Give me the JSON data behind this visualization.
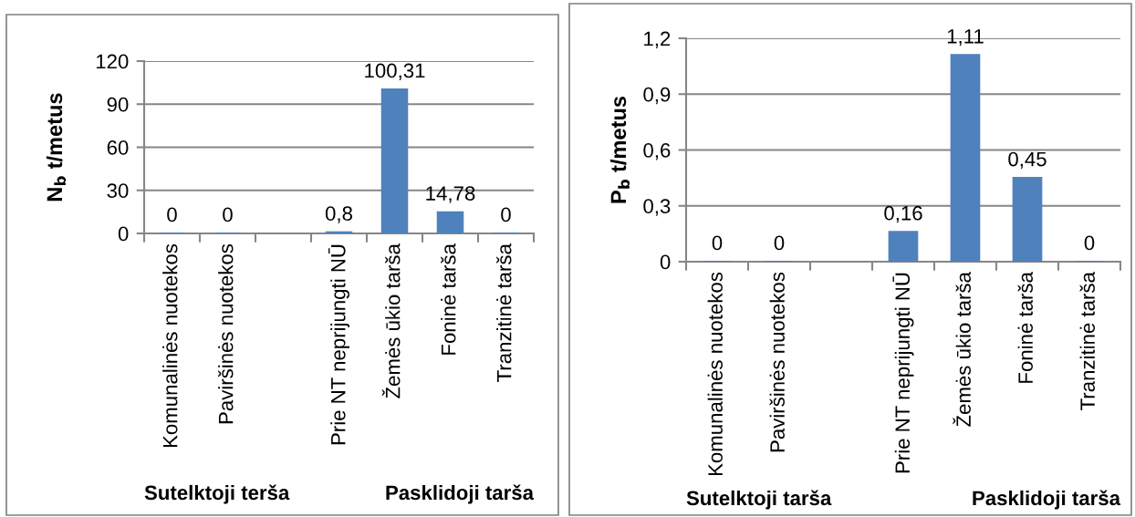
{
  "chart_data": [
    {
      "type": "bar",
      "ylabel": "N$_{b}$ t/metus",
      "categories": [
        "Komunalinės nuotekos",
        "Paviršinės nuotekos",
        null,
        "Prie NT neprijungti NŪ",
        "Žemės ūkio tarša",
        "Foninė tarša",
        "Tranzitinė tarša"
      ],
      "values": [
        0,
        0,
        null,
        0.8,
        100.31,
        14.78,
        0
      ],
      "value_labels": [
        "0",
        "0",
        null,
        "0,8",
        "100,31",
        "14,78",
        "0"
      ],
      "color": "#4f81bd",
      "ylim": [
        0,
        120
      ],
      "yticks": [
        0,
        30,
        60,
        90,
        120
      ],
      "grid": "y",
      "annotations": [
        "Sutelktoji terša",
        "Pasklidoji tarša"
      ]
    },
    {
      "type": "bar",
      "ylabel": "P$_{b}$ t/metus",
      "categories": [
        "Komunalinės nuotekos",
        "Paviršinės nuotekos",
        null,
        "Prie NT neprijungti NŪ",
        "Žemės ūkio tarša",
        "Foninė tarša",
        "Tranzitinė tarša"
      ],
      "values": [
        0,
        0,
        null,
        0.16,
        1.11,
        0.45,
        0
      ],
      "value_labels": [
        "0",
        "0",
        null,
        "0,16",
        "1,11",
        "0,45",
        "0"
      ],
      "color": "#4f81bd",
      "ylim": [
        0,
        1.2
      ],
      "yticks": [
        0,
        {
          "value": 0.3,
          "label": "0,3"
        },
        {
          "value": 0.6,
          "label": "0,6"
        },
        {
          "value": 0.9,
          "label": "0,9"
        },
        {
          "value": 1.2,
          "label": "1,2"
        }
      ],
      "grid": "y",
      "annotations": [
        "Sutelktoji tarša",
        "Pasklidoji tarša"
      ]
    }
  ]
}
